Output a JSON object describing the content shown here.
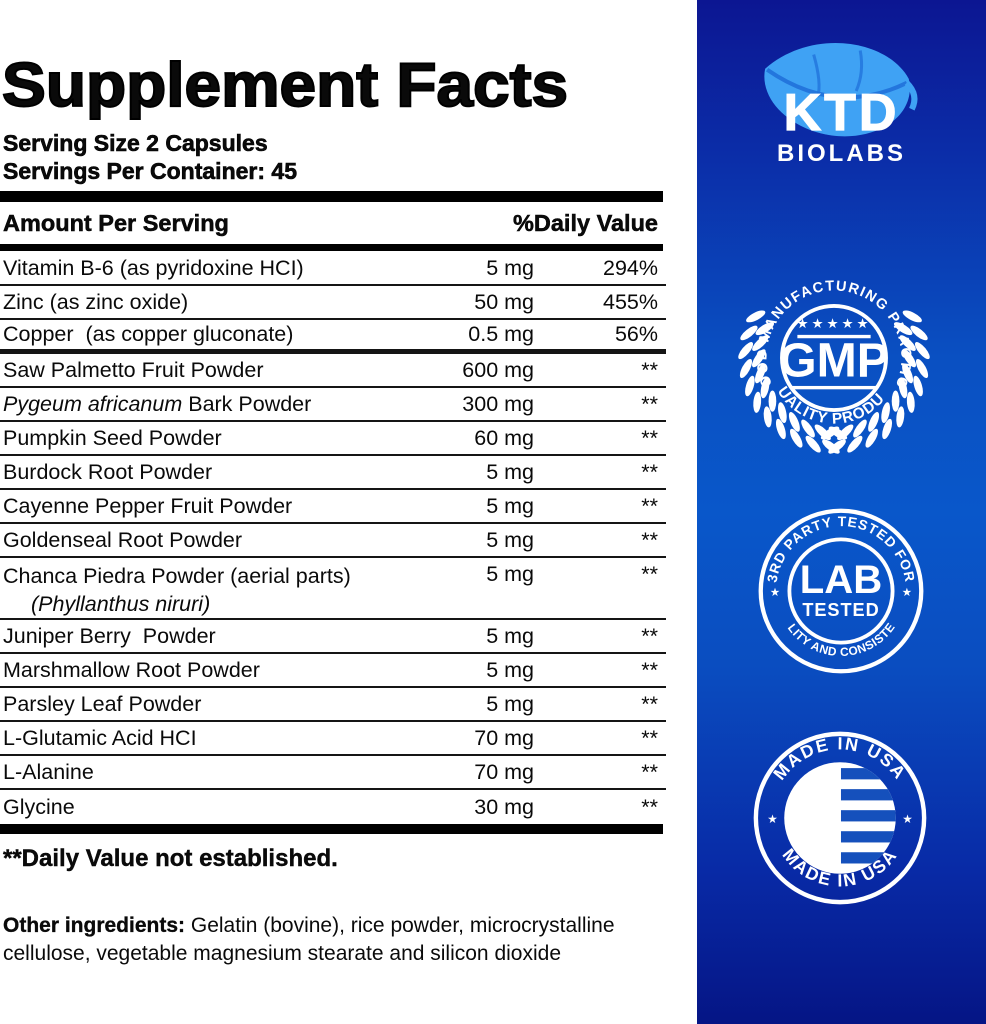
{
  "label": {
    "title": "Supplement Facts",
    "serving_size": "Serving Size 2 Capsules",
    "servings_per_container": "Servings Per Container: 45",
    "header": {
      "amount": "Amount Per Serving",
      "daily_value": "%Daily Value"
    },
    "rows": [
      {
        "name": "Vitamin B-6 (as pyridoxine HCI)",
        "amount": "5 mg",
        "dv": "294%"
      },
      {
        "name": "Zinc (as zinc oxide)",
        "amount": "50 mg",
        "dv": "455%"
      },
      {
        "name": "Copper  (as copper gluconate)",
        "amount": "0.5 mg",
        "dv": "56%"
      },
      {
        "name": "Saw Palmetto Fruit Powder",
        "amount": "600 mg",
        "dv": "**"
      },
      {
        "name_italic": "Pygeum africanum",
        "name_rest": " Bark Powder",
        "amount": "300 mg",
        "dv": "**"
      },
      {
        "name": "Pumpkin Seed Powder",
        "amount": "60 mg",
        "dv": "**"
      },
      {
        "name": "Burdock Root Powder",
        "amount": "5 mg",
        "dv": "**"
      },
      {
        "name": "Cayenne Pepper Fruit Powder",
        "amount": "5 mg",
        "dv": "**"
      },
      {
        "name": "Goldenseal Root Powder",
        "amount": "5 mg",
        "dv": "**"
      },
      {
        "name": "Chanca Piedra Powder (aerial parts)",
        "name_line2": "(Phyllanthus niruri)",
        "amount": "5 mg",
        "dv": "**"
      },
      {
        "name": "Juniper Berry  Powder",
        "amount": "5 mg",
        "dv": "**"
      },
      {
        "name": "Marshmallow Root Powder",
        "amount": "5 mg",
        "dv": "**"
      },
      {
        "name": "Parsley Leaf Powder",
        "amount": "5 mg",
        "dv": "**"
      },
      {
        "name": "L-Glutamic Acid HCI",
        "amount": "70 mg",
        "dv": "**"
      },
      {
        "name": "L-Alanine",
        "amount": "70 mg",
        "dv": "**"
      },
      {
        "name": "Glycine",
        "amount": "30 mg",
        "dv": "**"
      }
    ],
    "footnote": "**Daily Value not established.",
    "other_ingredients_label": "Other ingredients:",
    "other_ingredients_text": " Gelatin (bovine), rice powder, microcrystalline cellulose, vegetable magnesium stearate and silicon dioxide"
  },
  "sidebar": {
    "brand": {
      "name": "KTD",
      "sub": "BIOLABS"
    },
    "gmp_badge": {
      "arc_top": "GOOD MANUFACTURING PRACTICE",
      "arc_bottom": "QUALITY PRODUCT",
      "center": "GMP",
      "stars": "★★★★★"
    },
    "lab_badge": {
      "arc_top": "3RD PARTY TESTED FOR",
      "arc_bottom": "QUALITY AND CONSISTENCY",
      "center_line1": "LAB",
      "center_line2": "TESTED",
      "star_glyph": "★"
    },
    "usa_badge": {
      "arc_top": "MADE IN USA",
      "arc_bottom": "MADE IN USA",
      "star_glyph": "★"
    },
    "colors": {
      "panel_top": "#0c1692",
      "panel_mid": "#0957ca",
      "panel_bottom": "#051585",
      "leaf": "#3fa2f4",
      "leaf_vein": "#1e6ed8",
      "flag_blue": "#1550bc",
      "white": "#ffffff"
    }
  }
}
